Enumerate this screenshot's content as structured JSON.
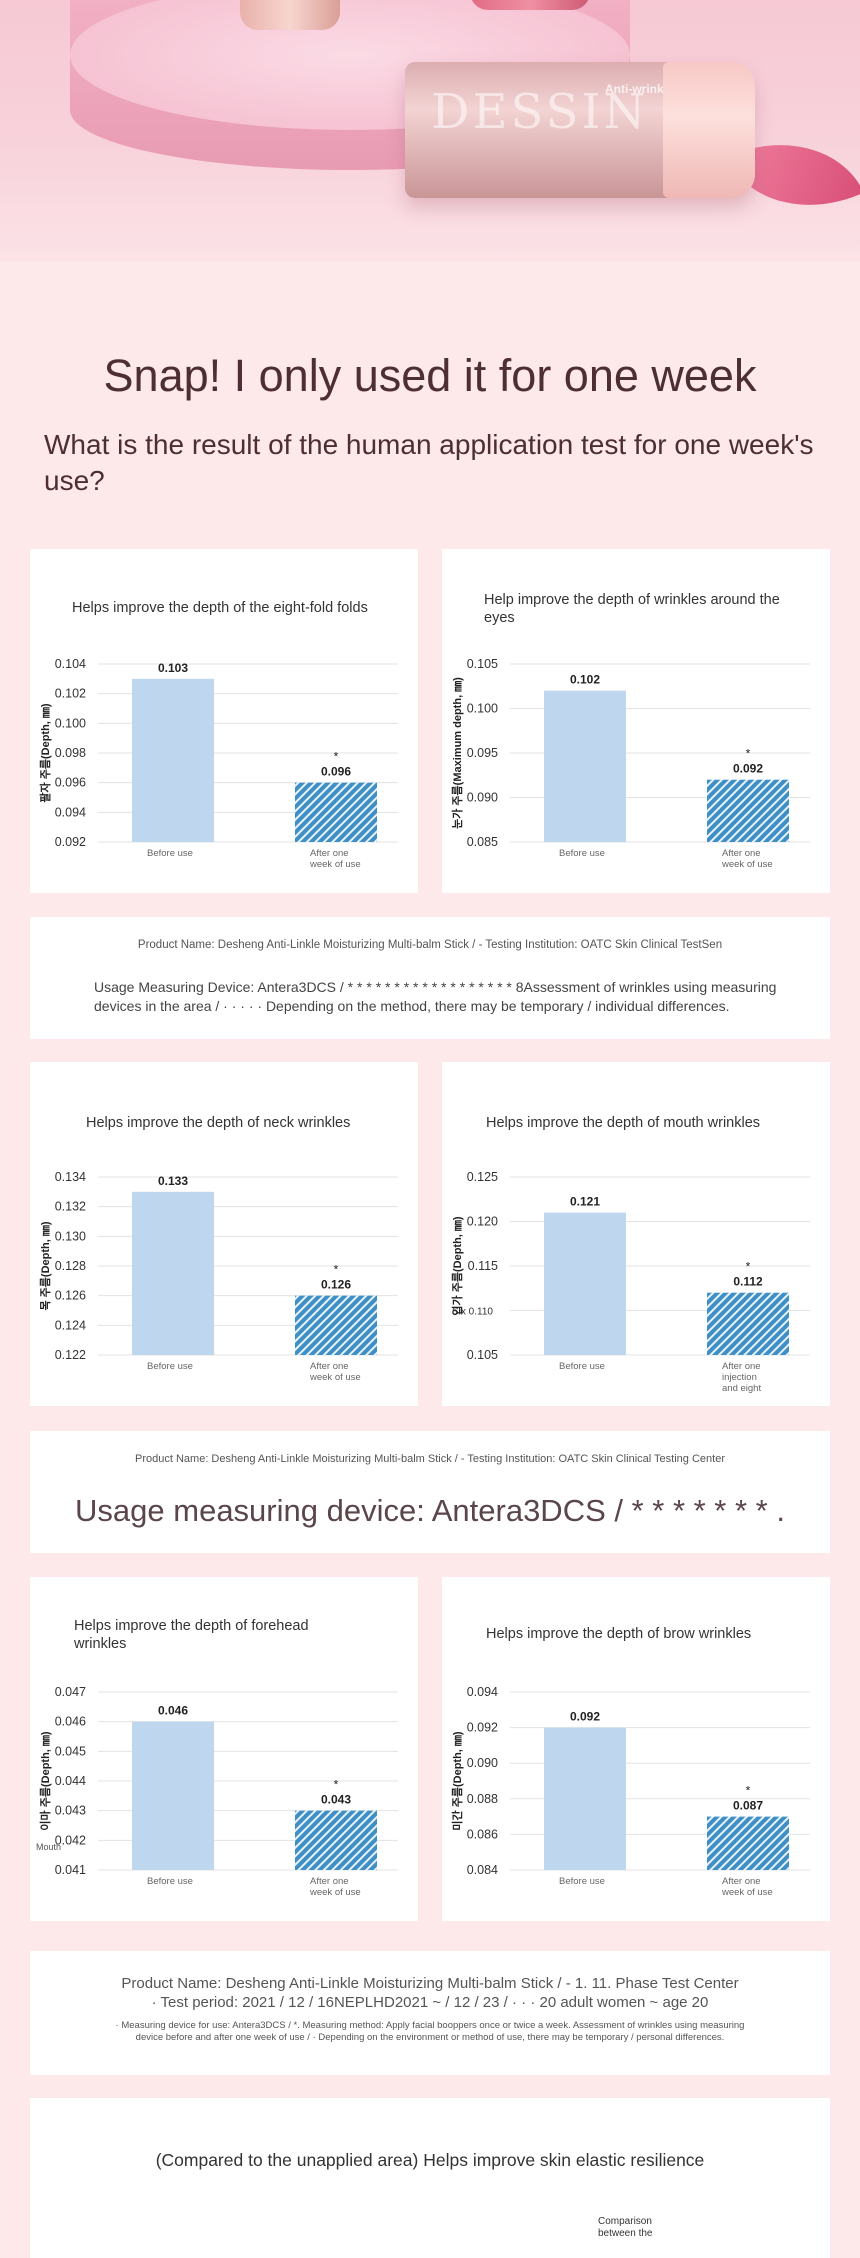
{
  "hero": {
    "brand": "DESSIN",
    "product_label": "Anti-wrinkle"
  },
  "headline": "Snap! I only used it for one week",
  "subheadline": "What is the result of the human application test for one week's use?",
  "chart_data": [
    {
      "type": "bar",
      "title": "Helps improve the depth of the eight-fold folds",
      "ylabel": "팔자 주름(Depth, ㎜)",
      "categories": [
        "Before use",
        "After one week of use"
      ],
      "values": [
        0.103,
        0.096
      ],
      "value_labels": [
        "0.103",
        "0.096"
      ],
      "significance": "*",
      "yticks": [
        "0.104",
        "0.102",
        "0.100",
        "0.098",
        "0.096",
        "0.094",
        "0.092"
      ],
      "ylim": [
        0.092,
        0.104
      ],
      "grid": true
    },
    {
      "type": "bar",
      "title": "Help improve the depth of wrinkles around the eyes",
      "ylabel": "눈가 주름(Maximum depth, ㎜)",
      "categories": [
        "Before use",
        "After one week of use"
      ],
      "values": [
        0.102,
        0.092
      ],
      "value_labels": [
        "0.102",
        "0.092"
      ],
      "significance": "*",
      "yticks": [
        "0.105",
        "0.100",
        "0.095",
        "0.090",
        "0.085"
      ],
      "ylim": [
        0.085,
        0.105
      ],
      "grid": true
    },
    {
      "type": "bar",
      "title": "Helps improve the depth of neck wrinkles",
      "ylabel": "목 주름(Depth, ㎜)",
      "categories": [
        "Before use",
        "After one week of use"
      ],
      "values": [
        0.133,
        0.126
      ],
      "value_labels": [
        "0.133",
        "0.126"
      ],
      "significance": "*",
      "yticks": [
        "0.134",
        "0.132",
        "0.130",
        "0.128",
        "0.126",
        "0.124",
        "0.122"
      ],
      "ylim": [
        0.122,
        0.134
      ],
      "grid": true
    },
    {
      "type": "bar",
      "title": "Helps improve the depth of mouth wrinkles",
      "ylabel": "입가 주름(Depth, ㎜)",
      "categories": [
        "Before use",
        "After one injection and eight"
      ],
      "values": [
        0.121,
        0.112
      ],
      "value_labels": [
        "0.121",
        "0.112"
      ],
      "significance": "*",
      "yticks": [
        "0.125",
        "0.120",
        "0.115",
        "Six 0.110",
        "0.105"
      ],
      "ylim": [
        0.105,
        0.125
      ],
      "grid": true
    },
    {
      "type": "bar",
      "title": "Helps improve the depth of forehead wrinkles",
      "ylabel": "이마 주름(Depth, ㎜)",
      "ylabel_extra": "Mouth",
      "categories": [
        "Before use",
        "After one week of use"
      ],
      "values": [
        0.046,
        0.043
      ],
      "value_labels": [
        "0.046",
        "0.043"
      ],
      "significance": "*",
      "yticks": [
        "0.047",
        "0.046",
        "0.045",
        "0.044",
        "0.043",
        "0.042",
        "0.041"
      ],
      "ylim": [
        0.041,
        0.047
      ],
      "grid": true
    },
    {
      "type": "bar",
      "title": "Helps improve the depth of brow wrinkles",
      "ylabel": "미간 주름(Depth, ㎜)",
      "categories": [
        "Before use",
        "After one week of use"
      ],
      "values": [
        0.092,
        0.087
      ],
      "value_labels": [
        "0.092",
        "0.087"
      ],
      "significance": "*",
      "yticks": [
        "0.094",
        "0.092",
        "0.090",
        "0.088",
        "0.086",
        "0.084"
      ],
      "ylim": [
        0.084,
        0.094
      ],
      "grid": true
    }
  ],
  "colors": {
    "before_bar": "#bfd6ef",
    "after_bar": "#3f8fc7",
    "after_bar_stripe": "#e6f1fa",
    "grid": "#e3e3e3"
  },
  "info1": {
    "line1": "Product Name: Desheng Anti-Linkle Moisturizing Multi-balm Stick / - Testing Institution: OATC Skin Clinical TestSen",
    "line2": "Usage Measuring Device: Antera3DCS / * * * * * * * * * * * * * * * * * * 8Assessment of wrinkles using measuring",
    "line3": "devices in the area / · · · · · Depending on the method, there may be temporary / individual differences."
  },
  "info2": {
    "line1": "Product Name: Desheng Anti-Linkle Moisturizing Multi-balm Stick / - Testing Institution: OATC Skin Clinical Testing Center",
    "line2": "Usage measuring device: Antera3DCS / * * * * * * * ."
  },
  "info3": {
    "line1": "Product Name: Desheng Anti-Linkle Moisturizing Multi-balm Stick / - 1. 11. Phase Test Center",
    "line2": "· Test period: 2021 / 12 / 16NEPLHD2021 ~ / 12 / 23 / · · · 20 adult women ~ age 20",
    "line3": "· Measuring device for use: Antera3DCS / *. Measuring method: Apply facial booppers once or twice a week. Assessment of wrinkles using measuring",
    "line4": "device before and after one week of use / · Depending on the environment or method of use, there may be temporary / personal differences."
  },
  "final": {
    "title": "(Compared to the unapplied area) Helps improve skin elastic resilience",
    "note": "Comparison between the"
  }
}
